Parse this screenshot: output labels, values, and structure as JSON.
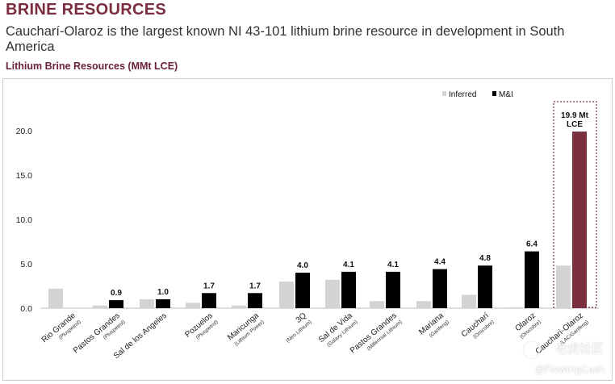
{
  "header": {
    "title": "BRINE RESOURCES",
    "subtitle": "Caucharí-Olaroz is the largest known NI 43-101 lithium brine resource in development in South America"
  },
  "chart_data": {
    "type": "bar",
    "title": "Lithium Brine Resources (MMt LCE)",
    "xlabel": "",
    "ylabel": "",
    "ylim": [
      0,
      22
    ],
    "yticks": [
      "0.0",
      "5.0",
      "10.0",
      "15.0",
      "20.0"
    ],
    "grid": false,
    "legend_position": "top-right",
    "categories": [
      {
        "name": "Rio Grande",
        "owner": "(Pluspetrol)"
      },
      {
        "name": "Pastos Grandes",
        "owner": "(Pluspetrol)"
      },
      {
        "name": "Sal de los Angeles",
        "owner": ""
      },
      {
        "name": "Pozuelos",
        "owner": "(Pluspetrol)"
      },
      {
        "name": "Maricunga",
        "owner": "(Lithium Power)"
      },
      {
        "name": "3Q",
        "owner": "(Neo Lithium)"
      },
      {
        "name": "Sal de Vida",
        "owner": "(Galaxy Lithium)"
      },
      {
        "name": "Pastos Grandes",
        "owner": "(Millennial Lithium)"
      },
      {
        "name": "Mariana",
        "owner": "(Ganfeng)"
      },
      {
        "name": "Caucharí",
        "owner": "(Orocobre)"
      },
      {
        "name": "Olaroz",
        "owner": "(Orocobre)"
      },
      {
        "name": "Caucharí-Olaroz",
        "owner": "(LAC/Ganfeng)"
      }
    ],
    "series": [
      {
        "name": "Inferred",
        "color": "#d3d3d3",
        "values": [
          2.2,
          0.3,
          1.0,
          0.6,
          0.3,
          3.0,
          3.2,
          0.8,
          0.8,
          1.5,
          0.1,
          4.8
        ]
      },
      {
        "name": "M&I",
        "color": "#000000",
        "values": [
          null,
          0.9,
          1.0,
          1.7,
          1.7,
          4.0,
          4.1,
          4.1,
          4.4,
          4.8,
          6.4,
          19.9
        ]
      }
    ],
    "value_labels": [
      "",
      "0.9",
      "1.0",
      "1.7",
      "1.7",
      "4.0",
      "4.1",
      "4.1",
      "4.4",
      "4.8",
      "6.4",
      ""
    ],
    "highlight": {
      "index": 11,
      "color": "#7b3040",
      "label_line1": "19.9 Mt",
      "label_line2": "LCE"
    }
  },
  "watermark": {
    "line1": "老虎社区",
    "line2": "@FlowingCash"
  }
}
